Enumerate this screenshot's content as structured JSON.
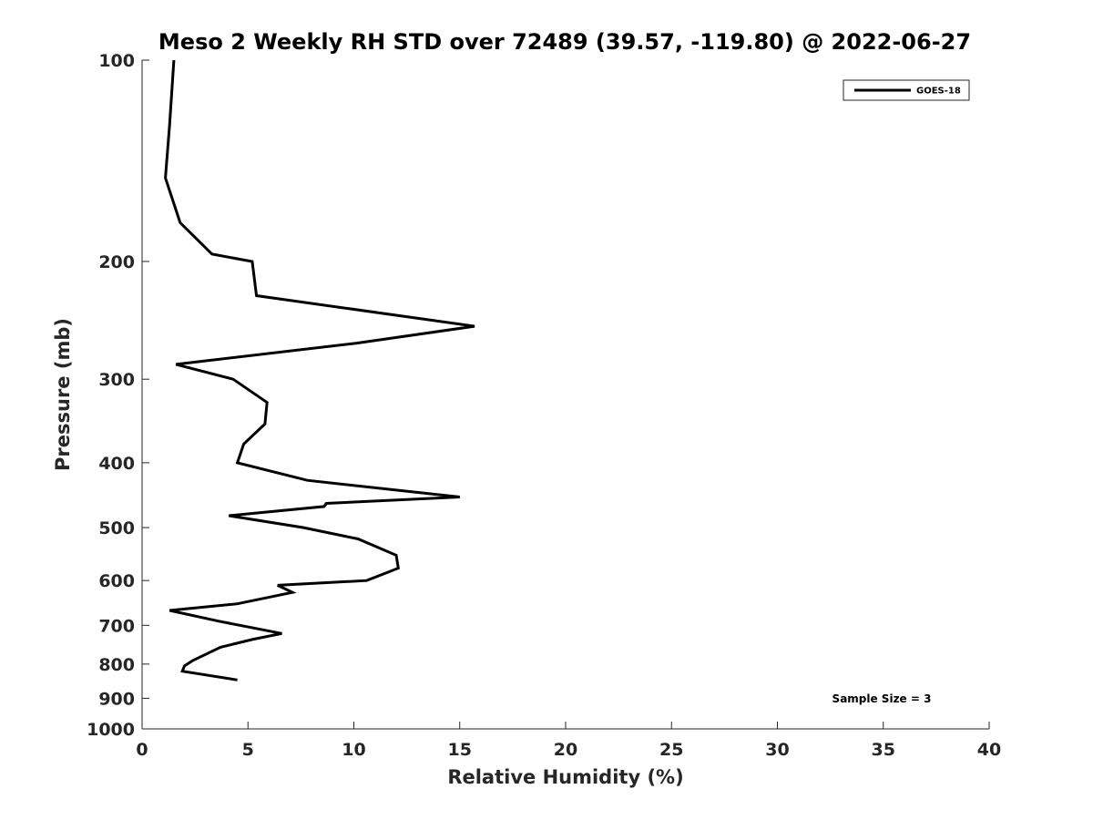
{
  "chart_data": {
    "type": "line",
    "title": "Meso 2 Weekly RH STD over 72489 (39.57, -119.80) @ 2022-06-27",
    "xlabel": "Relative Humidity (%)",
    "ylabel": "Pressure (mb)",
    "xlim": [
      0,
      40
    ],
    "ylim": [
      100,
      1000
    ],
    "y_scale": "log",
    "y_reversed": true,
    "x_ticks": [
      0,
      5,
      10,
      15,
      20,
      25,
      30,
      35,
      40
    ],
    "y_ticks": [
      100,
      200,
      300,
      400,
      500,
      600,
      700,
      800,
      900,
      1000
    ],
    "grid": false,
    "legend_position": "top-right",
    "annotation": "Sample Size = 3",
    "series": [
      {
        "name": "GOES-18",
        "color": "#000000",
        "points": [
          {
            "x": 1.5,
            "y": 100
          },
          {
            "x": 1.3,
            "y": 125
          },
          {
            "x": 1.1,
            "y": 150
          },
          {
            "x": 1.8,
            "y": 175
          },
          {
            "x": 3.3,
            "y": 195
          },
          {
            "x": 5.2,
            "y": 200
          },
          {
            "x": 5.4,
            "y": 225
          },
          {
            "x": 15.7,
            "y": 250
          },
          {
            "x": 10.1,
            "y": 265
          },
          {
            "x": 1.6,
            "y": 285
          },
          {
            "x": 4.3,
            "y": 300
          },
          {
            "x": 5.9,
            "y": 325
          },
          {
            "x": 5.8,
            "y": 350
          },
          {
            "x": 4.8,
            "y": 375
          },
          {
            "x": 4.5,
            "y": 400
          },
          {
            "x": 7.8,
            "y": 425
          },
          {
            "x": 15.0,
            "y": 450
          },
          {
            "x": 8.7,
            "y": 460
          },
          {
            "x": 8.6,
            "y": 465
          },
          {
            "x": 4.1,
            "y": 480
          },
          {
            "x": 7.6,
            "y": 500
          },
          {
            "x": 10.2,
            "y": 520
          },
          {
            "x": 12.0,
            "y": 550
          },
          {
            "x": 12.1,
            "y": 575
          },
          {
            "x": 10.6,
            "y": 600
          },
          {
            "x": 6.4,
            "y": 610
          },
          {
            "x": 7.1,
            "y": 625
          },
          {
            "x": 4.5,
            "y": 650
          },
          {
            "x": 1.3,
            "y": 665
          },
          {
            "x": 3.6,
            "y": 690
          },
          {
            "x": 6.6,
            "y": 720
          },
          {
            "x": 5.2,
            "y": 735
          },
          {
            "x": 3.7,
            "y": 755
          },
          {
            "x": 2.4,
            "y": 790
          },
          {
            "x": 2.0,
            "y": 805
          },
          {
            "x": 1.9,
            "y": 820
          },
          {
            "x": 4.5,
            "y": 845
          }
        ]
      }
    ]
  }
}
